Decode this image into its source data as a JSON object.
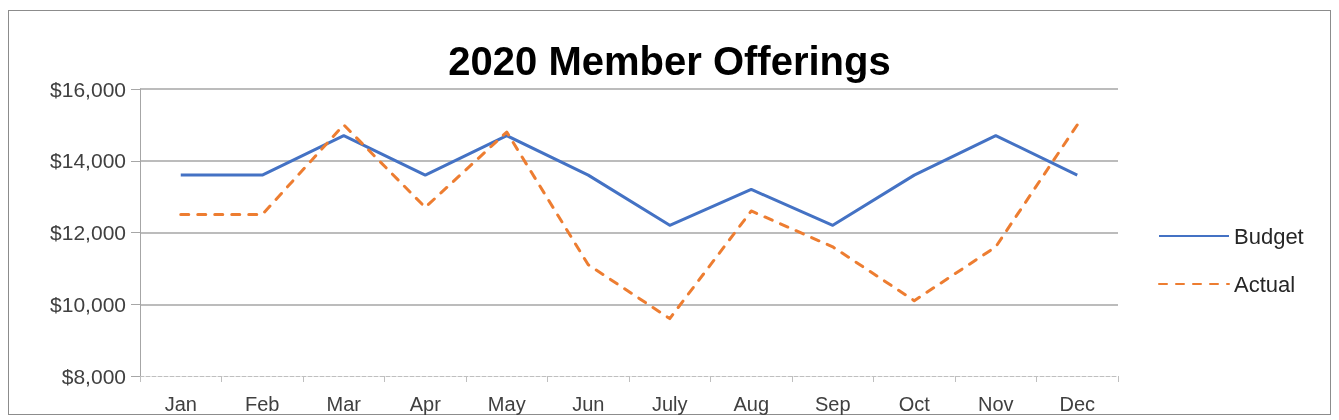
{
  "chart_data": {
    "type": "line",
    "title": "2020 Member Offerings",
    "categories": [
      "Jan",
      "Feb",
      "Mar",
      "Apr",
      "May",
      "Jun",
      "July",
      "Aug",
      "Sep",
      "Oct",
      "Nov",
      "Dec"
    ],
    "series": [
      {
        "name": "Budget",
        "color": "#4472c4",
        "line_style": "solid",
        "values": [
          13600,
          13600,
          14700,
          13600,
          14700,
          13600,
          12200,
          13200,
          12200,
          13600,
          14700,
          13600
        ]
      },
      {
        "name": "Actual",
        "color": "#ed7d31",
        "line_style": "dashed",
        "values": [
          12500,
          12500,
          15000,
          12700,
          14800,
          11100,
          9600,
          12600,
          11600,
          10100,
          11600,
          15000
        ]
      }
    ],
    "ylim": [
      8000,
      16000
    ],
    "yticks": [
      {
        "value": 8000,
        "label": "$8,000"
      },
      {
        "value": 10000,
        "label": "$10,000"
      },
      {
        "value": 12000,
        "label": "$12,000"
      },
      {
        "value": 14000,
        "label": "$14,000"
      },
      {
        "value": 16000,
        "label": "$16,000"
      }
    ],
    "grid": "y",
    "legend": "right",
    "marker": "none"
  }
}
